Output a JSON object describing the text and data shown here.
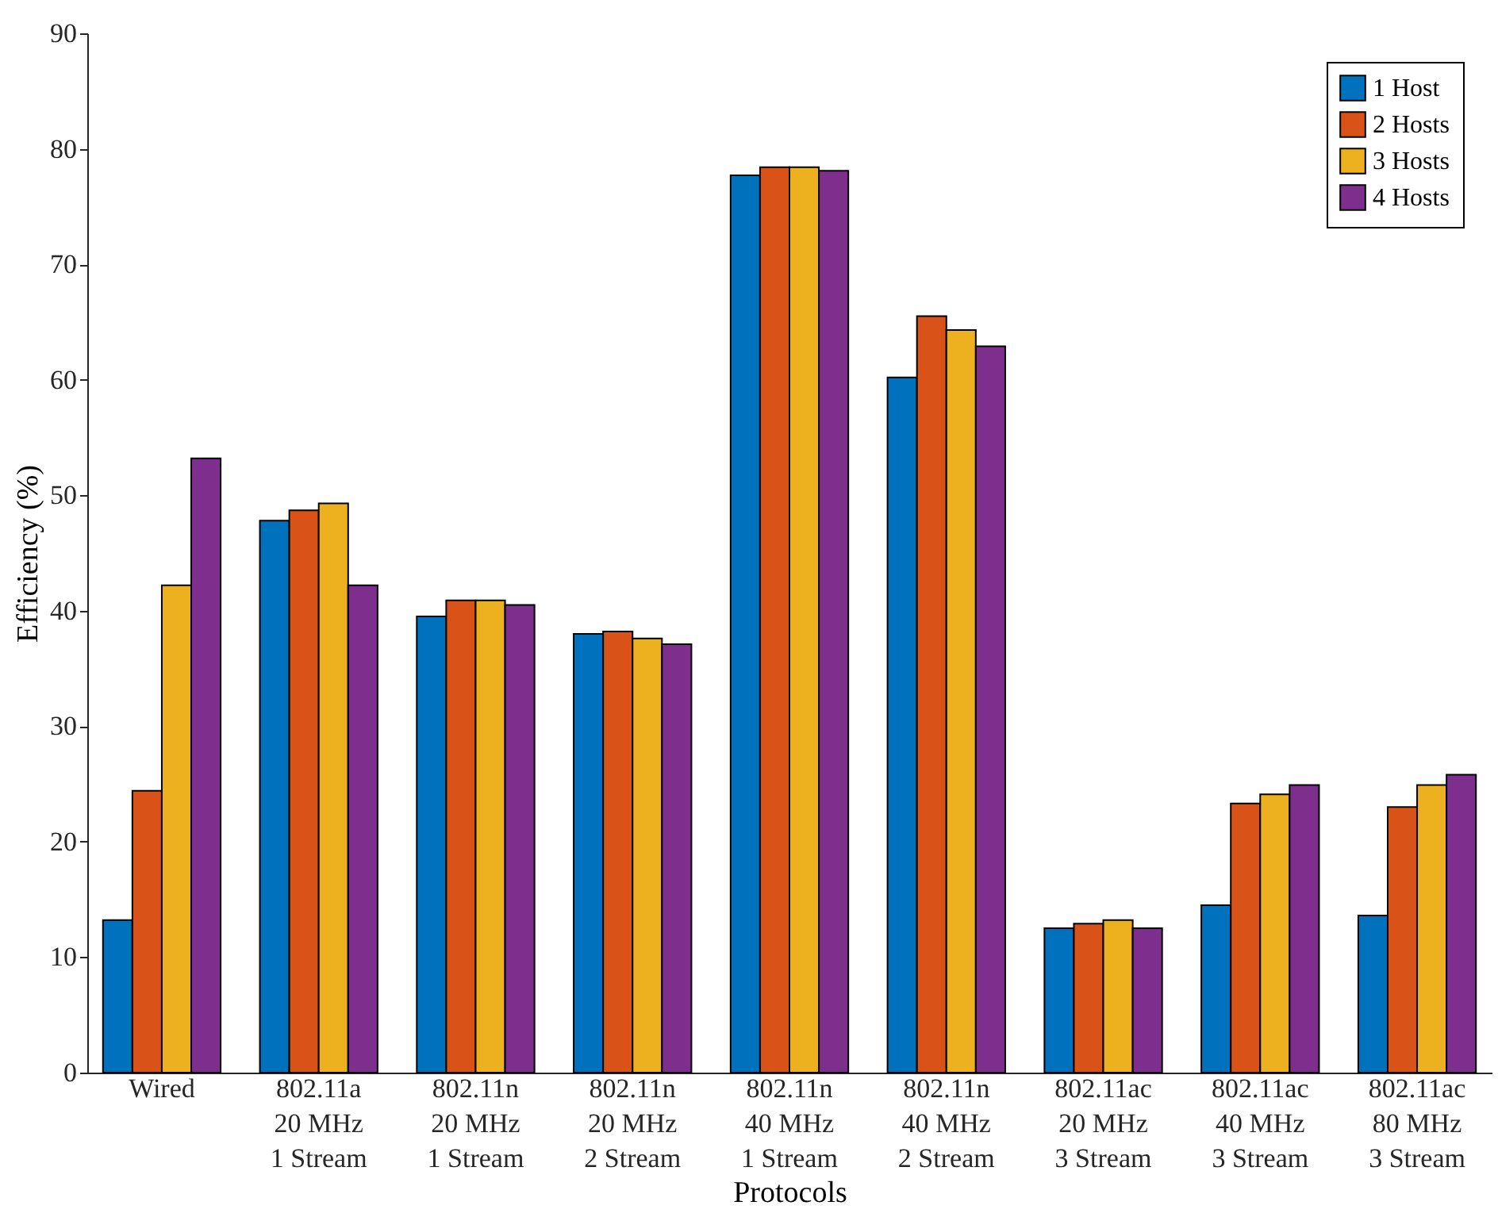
{
  "chart_data": {
    "type": "bar",
    "xlabel": "Protocols",
    "ylabel": "Efficiency (%)",
    "categories": [
      "Wired",
      "802.11a\n20 MHz\n1 Stream",
      "802.11n\n20 MHz\n1 Stream",
      "802.11n\n20 MHz\n2 Stream",
      "802.11n\n40 MHz\n1 Stream",
      "802.11n\n40 MHz\n2 Stream",
      "802.11ac\n20 MHz\n3 Stream",
      "802.11ac\n40 MHz\n3 Stream",
      "802.11ac\n80 MHz\n3 Stream"
    ],
    "series": [
      {
        "name": "1 Host",
        "color": "#0072bd",
        "values": [
          13.2,
          47.8,
          39.5,
          38.0,
          77.7,
          60.2,
          12.5,
          14.5,
          13.6
        ]
      },
      {
        "name": "2 Hosts",
        "color": "#d95319",
        "values": [
          24.4,
          48.7,
          40.9,
          38.2,
          78.4,
          65.5,
          12.9,
          23.3,
          23.0
        ]
      },
      {
        "name": "3 Hosts",
        "color": "#edb120",
        "values": [
          42.2,
          49.3,
          40.9,
          37.6,
          78.4,
          64.3,
          13.2,
          24.1,
          24.9
        ]
      },
      {
        "name": "4 Hosts",
        "color": "#7e2f8e",
        "values": [
          53.2,
          42.2,
          40.5,
          37.1,
          78.1,
          62.9,
          12.5,
          24.9,
          25.8
        ]
      }
    ],
    "ylim": [
      0,
      90
    ],
    "yticks": [
      0,
      10,
      20,
      30,
      40,
      50,
      60,
      70,
      80,
      90
    ],
    "grid": false,
    "legend": "top right"
  }
}
